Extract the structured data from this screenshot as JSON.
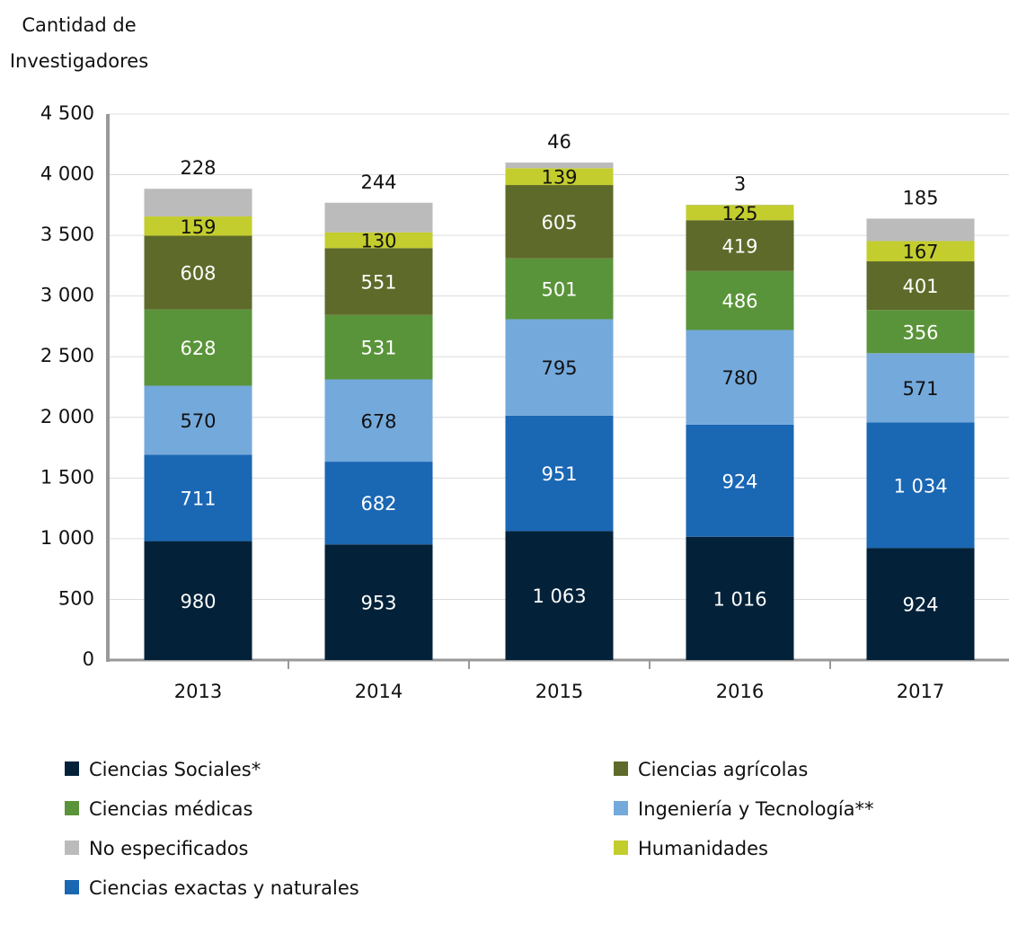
{
  "chart_data": {
    "type": "bar",
    "stacked": true,
    "ylabel": "Cantidad de Investigadores",
    "categories": [
      "2013",
      "2014",
      "2015",
      "2016",
      "2017"
    ],
    "series": [
      {
        "name": "Ciencias Sociales*",
        "color": "#03223a",
        "values": [
          980,
          953,
          1063,
          1016,
          924
        ],
        "value_labels": [
          "980",
          "953",
          "1 063",
          "1 016",
          "924"
        ]
      },
      {
        "name": "Ciencias exactas y naturales",
        "color": "#1a67b4",
        "values": [
          711,
          682,
          951,
          924,
          1034
        ],
        "value_labels": [
          "711",
          "682",
          "951",
          "924",
          "1 034"
        ]
      },
      {
        "name": "Ingeniería y Tecnología**",
        "color": "#74a9dc",
        "values": [
          570,
          678,
          795,
          780,
          571
        ]
      },
      {
        "name": "Ciencias médicas",
        "color": "#5a943a",
        "values": [
          628,
          531,
          501,
          486,
          356
        ]
      },
      {
        "name": "Ciencias agrícolas",
        "color": "#5e6a29",
        "values": [
          608,
          551,
          605,
          419,
          401
        ]
      },
      {
        "name": "Humanidades",
        "color": "#c3cd2e",
        "values": [
          159,
          130,
          139,
          125,
          167
        ]
      },
      {
        "name": "No especificados",
        "color": "#bbbbbb",
        "values": [
          228,
          244,
          46,
          3,
          185
        ]
      }
    ],
    "ylim": [
      0,
      4500
    ],
    "yticks": [
      0,
      500,
      {
        "value": 1000,
        "label": "1 000"
      },
      {
        "value": 1500,
        "label": "1 500"
      },
      {
        "value": 2000,
        "label": "2 000"
      },
      {
        "value": 2500,
        "label": "2 500"
      },
      {
        "value": 3000,
        "label": "3 000"
      },
      {
        "value": 3500,
        "label": "3 500"
      },
      {
        "value": 4000,
        "label": "4 000"
      },
      {
        "value": 4500,
        "label": "4 500"
      }
    ],
    "grid": true
  }
}
